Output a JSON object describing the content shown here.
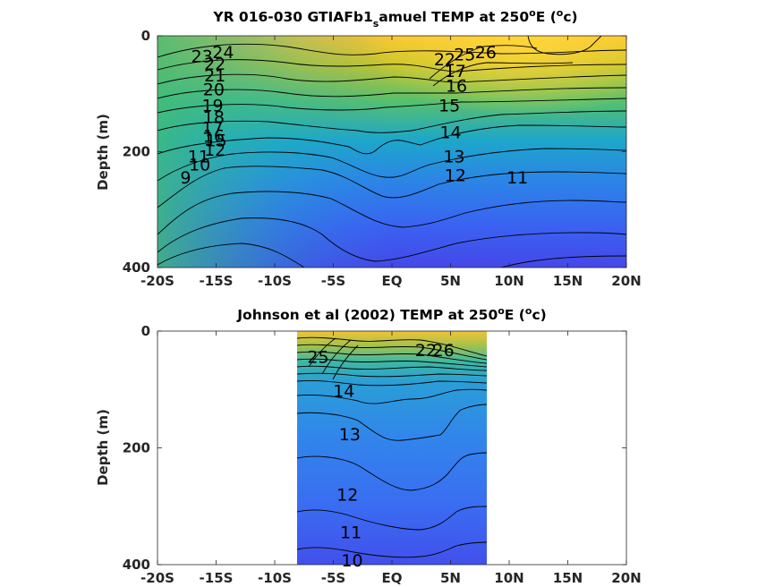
{
  "chart_data": [
    {
      "type": "contour",
      "title_parts": [
        "YR 016-030 GTIAFb1",
        "s",
        "amuel TEMP at 250",
        "o",
        "E (",
        "o",
        "c)"
      ],
      "ylabel": "Depth (m)",
      "xlabel": "",
      "x_ticks": [
        "-20S",
        "-15S",
        "-10S",
        "-5S",
        "EQ",
        "5N",
        "10N",
        "15N",
        "20N"
      ],
      "x_tick_values": [
        -20,
        -15,
        -10,
        -5,
        0,
        5,
        10,
        15,
        20
      ],
      "y_ticks": [
        "0",
        "200",
        "400"
      ],
      "y_tick_values": [
        0,
        200,
        400
      ],
      "xlim": [
        -20,
        20
      ],
      "ylim": [
        400,
        0
      ],
      "y_reversed": true,
      "data_extent_x": [
        -20,
        20
      ],
      "colormap": "parula",
      "color_range": [
        8,
        27
      ],
      "contour_labels": [
        {
          "text": "24",
          "x": -14.4,
          "depth": 28
        },
        {
          "text": "23",
          "x": -16.2,
          "depth": 35
        },
        {
          "text": "22",
          "x": -15.1,
          "depth": 48
        },
        {
          "text": "21",
          "x": -15.1,
          "depth": 68
        },
        {
          "text": "20",
          "x": -15.2,
          "depth": 92
        },
        {
          "text": "19",
          "x": -15.3,
          "depth": 120
        },
        {
          "text": "18",
          "x": -15.2,
          "depth": 140
        },
        {
          "text": "17",
          "x": -15.3,
          "depth": 158
        },
        {
          "text": "16",
          "x": -15.2,
          "depth": 172
        },
        {
          "text": "15",
          "x": -15.0,
          "depth": 180
        },
        {
          "text": "12",
          "x": -15.1,
          "depth": 196
        },
        {
          "text": "11",
          "x": -16.5,
          "depth": 208
        },
        {
          "text": "10",
          "x": -16.4,
          "depth": 222
        },
        {
          "text": "9",
          "x": -17.6,
          "depth": 244
        },
        {
          "text": "26",
          "x": 8.0,
          "depth": 28
        },
        {
          "text": "25",
          "x": 6.2,
          "depth": 32
        },
        {
          "text": "22",
          "x": 4.5,
          "depth": 40
        },
        {
          "text": "17",
          "x": 5.4,
          "depth": 60
        },
        {
          "text": "16",
          "x": 5.5,
          "depth": 86
        },
        {
          "text": "15",
          "x": 4.9,
          "depth": 120
        },
        {
          "text": "14",
          "x": 5.0,
          "depth": 166
        },
        {
          "text": "13",
          "x": 5.3,
          "depth": 208
        },
        {
          "text": "12",
          "x": 5.4,
          "depth": 240
        },
        {
          "text": "11",
          "x": 10.7,
          "depth": 244
        }
      ]
    },
    {
      "type": "contour",
      "title_parts": [
        "Johnson et al (2002) TEMP at 250",
        "o",
        "E (",
        "o",
        "c)"
      ],
      "ylabel": "Depth (m)",
      "xlabel": "",
      "x_ticks": [
        "-20S",
        "-15S",
        "-10S",
        "-5S",
        "EQ",
        "5N",
        "10N",
        "15N",
        "20N"
      ],
      "x_tick_values": [
        -20,
        -15,
        -10,
        -5,
        0,
        5,
        10,
        15,
        20
      ],
      "y_ticks": [
        "0",
        "200",
        "400"
      ],
      "y_tick_values": [
        0,
        200,
        400
      ],
      "xlim": [
        -20,
        20
      ],
      "ylim": [
        400,
        0
      ],
      "y_reversed": true,
      "data_extent_x": [
        -8,
        8.2
      ],
      "colormap": "parula",
      "color_range": [
        8,
        27
      ],
      "contour_labels": [
        {
          "text": "25",
          "x": -6.3,
          "depth": 44
        },
        {
          "text": "14",
          "x": -4.1,
          "depth": 102
        },
        {
          "text": "13",
          "x": -3.6,
          "depth": 176
        },
        {
          "text": "12",
          "x": -3.8,
          "depth": 280
        },
        {
          "text": "11",
          "x": -3.5,
          "depth": 344
        },
        {
          "text": "10",
          "x": -3.4,
          "depth": 392
        },
        {
          "text": "22",
          "x": 2.9,
          "depth": 32
        },
        {
          "text": "26",
          "x": 4.4,
          "depth": 32
        }
      ]
    }
  ]
}
